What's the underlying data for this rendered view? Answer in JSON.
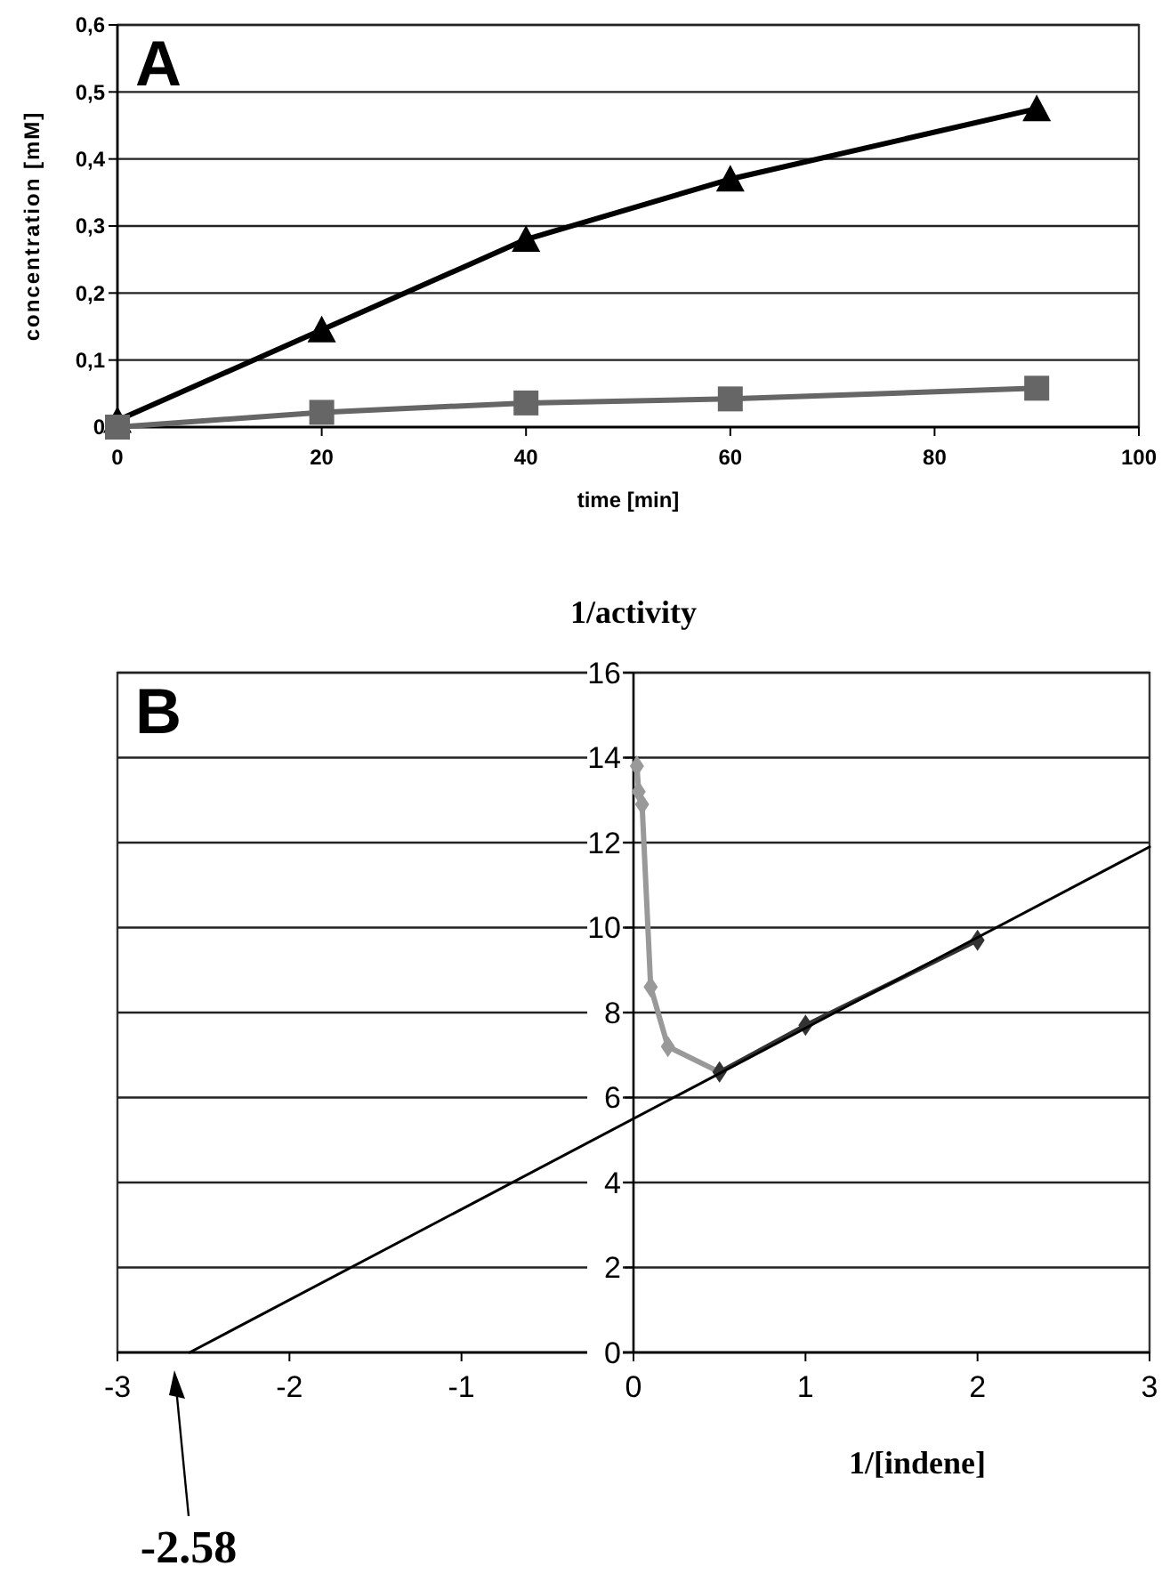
{
  "chart_data": [
    {
      "type": "line",
      "xlabel": "time [min]",
      "ylabel": "concentration [mM]",
      "annotations": [
        "A"
      ],
      "xlim": [
        0,
        100
      ],
      "xticks": [
        0,
        20,
        40,
        60,
        80,
        100
      ],
      "ylim": [
        0,
        0.6
      ],
      "yticks": [
        0,
        {
          "value": 0.1,
          "label": "0,1"
        },
        {
          "value": 0.2,
          "label": "0,2"
        },
        {
          "value": 0.3,
          "label": "0,3"
        },
        {
          "value": 0.4,
          "label": "0,4"
        },
        {
          "value": 0.5,
          "label": "0,5"
        },
        {
          "value": 0.6,
          "label": "0,6"
        }
      ],
      "grid": "y",
      "series": [
        {
          "color": "#000000",
          "marker": "triangle",
          "x": [
            0,
            20,
            40,
            60,
            90
          ],
          "values": [
            0.01,
            0.145,
            0.28,
            0.37,
            0.475
          ]
        },
        {
          "color": "#666666",
          "marker": "square",
          "x": [
            0,
            20,
            40,
            60,
            90
          ],
          "values": [
            0,
            0.022,
            0.036,
            0.042,
            0.058
          ]
        }
      ]
    },
    {
      "type": "line",
      "xlabel": "1/[indene]",
      "ylabel": "1/activity",
      "annotations": [
        "B",
        "-2.58"
      ],
      "xlim": [
        -3,
        3
      ],
      "xticks": [
        -3,
        -2,
        -1,
        0,
        1,
        2,
        3
      ],
      "ylim": [
        0,
        16
      ],
      "yticks": [
        0,
        2,
        4,
        6,
        8,
        10,
        12,
        14,
        16
      ],
      "grid": "y",
      "series": [
        {
          "color": "#999999",
          "marker": "diamond",
          "x": [
            0.02,
            0.03,
            0.05,
            0.1,
            0.2,
            0.5
          ],
          "values": [
            13.8,
            13.2,
            12.9,
            8.6,
            7.2,
            6.6
          ]
        },
        {
          "color": "#333333",
          "marker": "diamond",
          "x": [
            0.5,
            1,
            2
          ],
          "values": [
            6.6,
            7.7,
            9.7
          ]
        },
        {
          "color": "#000000",
          "marker": "none",
          "x": [
            -2.58,
            3
          ],
          "values": [
            0,
            11.9
          ]
        }
      ]
    }
  ]
}
